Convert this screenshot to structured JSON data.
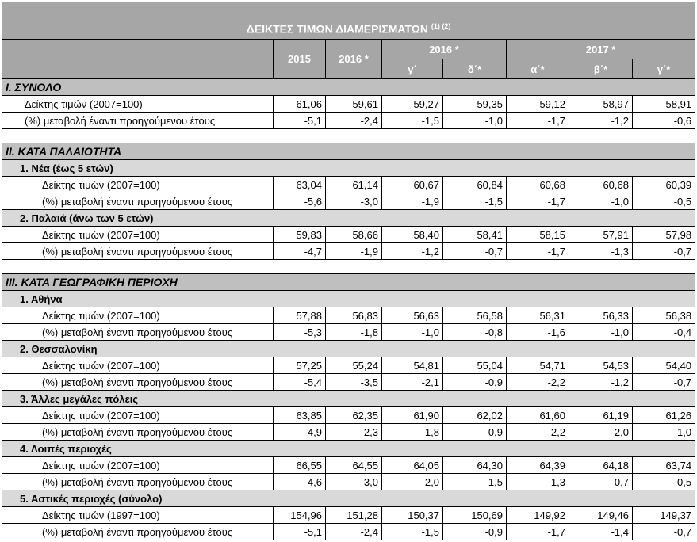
{
  "title": "ΔΕΙΚΤΕΣ ΤΙΜΩΝ ΔΙΑΜΕΡΙΣΜΑΤΩΝ",
  "title_note": "(1) (2)",
  "header": {
    "years": [
      "2015",
      "2016 *"
    ],
    "groups": [
      {
        "label": "2016 *",
        "quarters": [
          "γ΄",
          "δ΄*"
        ]
      },
      {
        "label": "2017 *",
        "quarters": [
          "α΄*",
          "β΄*",
          "γ΄*"
        ]
      }
    ]
  },
  "sections": [
    {
      "title": "I. ΣΥΝΟΛΟ",
      "rows": [
        {
          "label": "Δείκτης τιμών (2007=100)",
          "values": [
            "61,06",
            "59,61",
            "59,27",
            "59,35",
            "59,12",
            "58,97",
            "58,91"
          ]
        },
        {
          "label": "(%) μεταβολή έναντι προηγούμενου έτους",
          "values": [
            "-5,1",
            "-2,4",
            "-1,5",
            "-1,0",
            "-1,7",
            "-1,2",
            "-0,6"
          ]
        }
      ]
    },
    {
      "title": "II. ΚΑΤΑ ΠΑΛΑΙΟΤΗΤΑ",
      "subsections": [
        {
          "title": "1.  Νέα (έως 5 ετών)",
          "rows": [
            {
              "label": "Δείκτης τιμών (2007=100)",
              "values": [
                "63,04",
                "61,14",
                "60,67",
                "60,84",
                "60,68",
                "60,68",
                "60,39"
              ]
            },
            {
              "label": "(%) μεταβολή έναντι προηγούμενου έτους",
              "values": [
                "-5,6",
                "-3,0",
                "-1,9",
                "-1,5",
                "-1,7",
                "-1,0",
                "-0,5"
              ]
            }
          ]
        },
        {
          "title": "2. Παλαιά (άνω των 5 ετών)",
          "rows": [
            {
              "label": "Δείκτης τιμών (2007=100)",
              "values": [
                "59,83",
                "58,66",
                "58,40",
                "58,41",
                "58,15",
                "57,91",
                "57,98"
              ]
            },
            {
              "label": "(%) μεταβολή έναντι προηγούμενου έτους",
              "values": [
                "-4,7",
                "-1,9",
                "-1,2",
                "-0,7",
                "-1,7",
                "-1,3",
                "-0,7"
              ]
            }
          ]
        }
      ]
    },
    {
      "title": "III. ΚΑΤΑ ΓΕΩΓΡΑΦΙΚΗ ΠΕΡΙΟΧΗ",
      "subsections": [
        {
          "title": "1.  Αθήνα",
          "rows": [
            {
              "label": "Δείκτης τιμών (2007=100)",
              "values": [
                "57,88",
                "56,83",
                "56,63",
                "56,58",
                "56,31",
                "56,33",
                "56,38"
              ]
            },
            {
              "label": "(%) μεταβολή έναντι προηγούμενου έτους",
              "values": [
                "-5,3",
                "-1,8",
                "-1,0",
                "-0,8",
                "-1,6",
                "-1,0",
                "-0,4"
              ]
            }
          ]
        },
        {
          "title": "2.  Θεσσαλονίκη",
          "rows": [
            {
              "label": "Δείκτης τιμών (2007=100)",
              "values": [
                "57,25",
                "55,24",
                "54,81",
                "55,04",
                "54,71",
                "54,53",
                "54,40"
              ]
            },
            {
              "label": "(%) μεταβολή έναντι προηγούμενου έτους",
              "values": [
                "-5,4",
                "-3,5",
                "-2,1",
                "-0,9",
                "-2,2",
                "-1,2",
                "-0,7"
              ]
            }
          ]
        },
        {
          "title": "3.  Άλλες μεγάλες πόλεις",
          "rows": [
            {
              "label": "Δείκτης τιμών (2007=100)",
              "values": [
                "63,85",
                "62,35",
                "61,90",
                "62,02",
                "61,60",
                "61,19",
                "61,26"
              ]
            },
            {
              "label": "(%) μεταβολή έναντι προηγούμενου έτους",
              "values": [
                "-4,9",
                "-2,3",
                "-1,8",
                "-0,9",
                "-2,2",
                "-2,0",
                "-1,0"
              ]
            }
          ]
        },
        {
          "title": "4.  Λοιπές περιοχές",
          "rows": [
            {
              "label": "Δείκτης τιμών (2007=100)",
              "values": [
                "66,55",
                "64,55",
                "64,05",
                "64,30",
                "64,39",
                "64,18",
                "63,74"
              ]
            },
            {
              "label": "(%) μεταβολή έναντι προηγούμενου έτους",
              "values": [
                "-4,6",
                "-3,0",
                "-2,0",
                "-1,5",
                "-1,3",
                "-0,7",
                "-0,5"
              ]
            }
          ]
        },
        {
          "title": "5.  Αστικές περιοχές (σύνολο)",
          "rows": [
            {
              "label": "Δείκτης τιμών (1997=100)",
              "values": [
                "154,96",
                "151,28",
                "150,37",
                "150,69",
                "149,92",
                "149,46",
                "149,37"
              ]
            },
            {
              "label": "(%) μεταβολή έναντι προηγούμενου έτους",
              "values": [
                "-5,1",
                "-2,4",
                "-1,5",
                "-0,9",
                "-1,7",
                "-1,4",
                "-0,7"
              ]
            }
          ]
        }
      ]
    }
  ]
}
